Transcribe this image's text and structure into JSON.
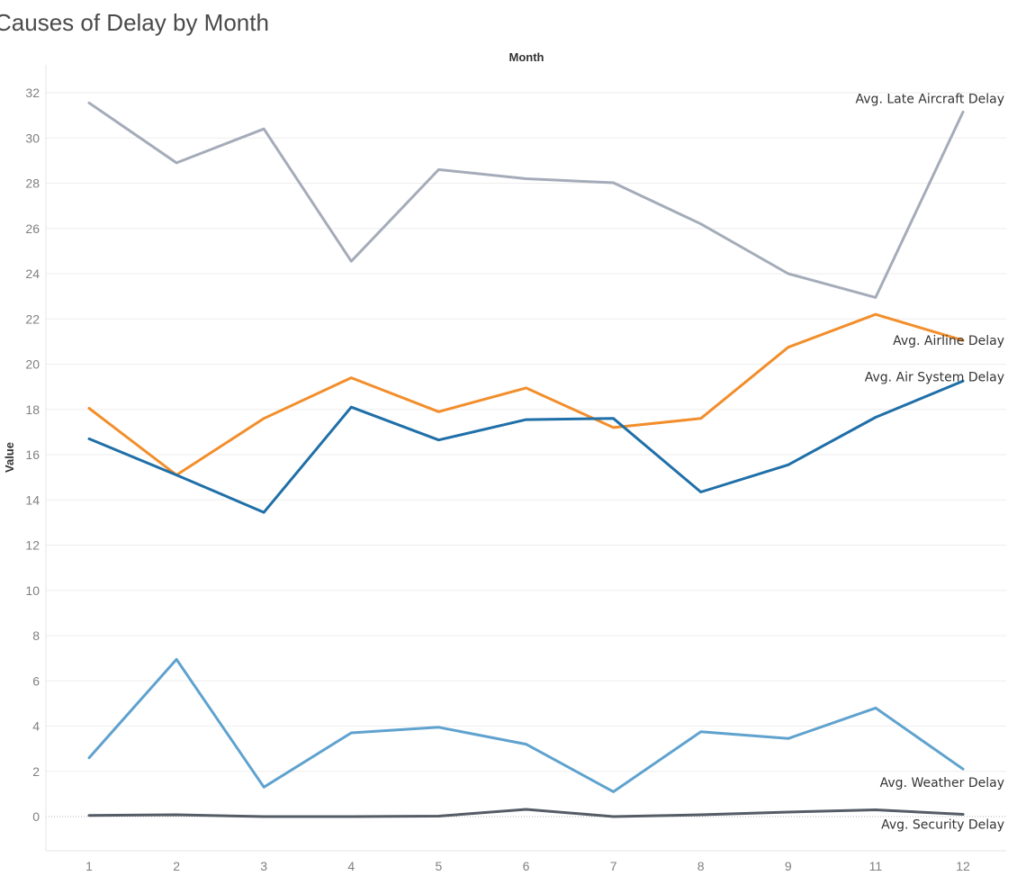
{
  "chart_data": {
    "type": "line",
    "title": "Causes of Delay by Month",
    "xlabel": "Month",
    "ylabel": "Value",
    "x": [
      1,
      2,
      3,
      4,
      5,
      6,
      7,
      8,
      9,
      11,
      12
    ],
    "x_tick_labels": [
      "1",
      "2",
      "3",
      "4",
      "5",
      "6",
      "7",
      "8",
      "9",
      "11",
      "12"
    ],
    "ylim": [
      -1.7,
      33.2
    ],
    "y_ticks": [
      0,
      2,
      4,
      6,
      8,
      10,
      12,
      14,
      16,
      18,
      20,
      22,
      24,
      26,
      28,
      30,
      32
    ],
    "grid": true,
    "legend": "labels at line ends (right)",
    "series": [
      {
        "name": "Avg. Late Aircraft Delay",
        "color": "#a5acb9",
        "values": [
          31.55,
          28.9,
          30.4,
          24.55,
          28.6,
          28.2,
          28.02,
          26.2,
          24.0,
          22.95,
          31.15
        ]
      },
      {
        "name": "Avg. Airline Delay",
        "color": "#f28e2b",
        "values": [
          18.05,
          15.1,
          17.6,
          19.4,
          17.9,
          18.95,
          17.2,
          17.6,
          20.75,
          22.2,
          21.05
        ]
      },
      {
        "name": "Avg. Air System Delay",
        "color": "#1f6fa8",
        "values": [
          16.7,
          15.1,
          13.45,
          18.1,
          16.65,
          17.55,
          17.6,
          14.35,
          15.55,
          17.65,
          19.25
        ]
      },
      {
        "name": "Avg. Weather Delay",
        "color": "#5fa2ce",
        "values": [
          2.6,
          6.95,
          1.3,
          3.7,
          3.95,
          3.2,
          1.1,
          3.75,
          3.45,
          4.8,
          2.1
        ]
      },
      {
        "name": "Avg. Security Delay",
        "color": "#555c66",
        "values": [
          0.05,
          0.08,
          0.0,
          0.0,
          0.02,
          0.32,
          0.0,
          0.08,
          0.2,
          0.3,
          0.1
        ]
      }
    ]
  }
}
